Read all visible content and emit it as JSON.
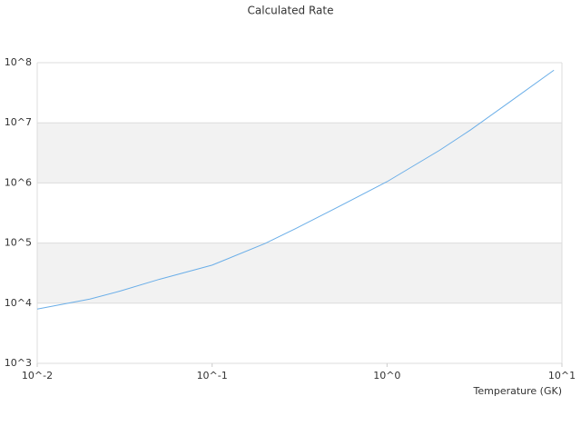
{
  "chart_data": {
    "type": "line",
    "title": "Calculated Rate",
    "x_label": "Temperature (GK)",
    "x": [
      0.01,
      0.02,
      0.03,
      0.05,
      0.1,
      0.2,
      0.3,
      0.5,
      1,
      2,
      3,
      5,
      9
    ],
    "series": [
      {
        "color": "#6aaee8",
        "values": [
          8000,
          11700,
          16000,
          25000,
          43000,
          98000,
          174000,
          370000,
          1050000,
          3500000,
          7600000,
          22000000,
          75000000
        ]
      }
    ],
    "log_x": true,
    "log_y": true,
    "xlim": [
      0.01,
      10
    ],
    "ylim": [
      1000,
      100000000
    ],
    "xticks": [
      {
        "value": 0.01,
        "label": "10^-2"
      },
      {
        "value": 0.1,
        "label": "10^-1"
      },
      {
        "value": 1,
        "label": "10^0"
      },
      {
        "value": 10,
        "label": "10^1"
      }
    ],
    "yticks": [
      {
        "value": 1000,
        "label": "10^3"
      },
      {
        "value": 10000,
        "label": "10^4"
      },
      {
        "value": 100000,
        "label": "10^5"
      },
      {
        "value": 1000000,
        "label": "10^6"
      },
      {
        "value": 10000000,
        "label": "10^7"
      },
      {
        "value": 100000000,
        "label": "10^8"
      }
    ],
    "grid": true,
    "band_color": "#f2f2f2"
  }
}
